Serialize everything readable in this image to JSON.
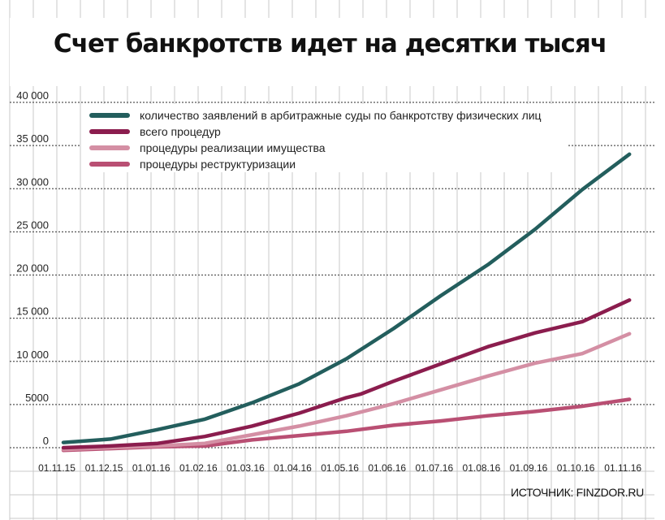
{
  "title": "Счет банкротств идет на десятки тысяч",
  "source": "ИСТОЧНИК: FINZDOR.RU",
  "chart_data": {
    "type": "line",
    "title": "Счет банкротств идет на десятки тысяч",
    "xlabel": "",
    "ylabel": "",
    "ylim": [
      0,
      40000
    ],
    "grid": true,
    "legend_placement": "top-left",
    "y_ticks": [
      {
        "value": 0,
        "label": "0"
      },
      {
        "value": 5000,
        "label": "5000"
      },
      {
        "value": 10000,
        "label": "10 000"
      },
      {
        "value": 15000,
        "label": "15 000"
      },
      {
        "value": 20000,
        "label": "20 000"
      },
      {
        "value": 25000,
        "label": "25 000"
      },
      {
        "value": 30000,
        "label": "30 000"
      },
      {
        "value": 35000,
        "label": "35 000"
      },
      {
        "value": 40000,
        "label": "40 000"
      }
    ],
    "categories": [
      "01.11.15",
      "01.12.15",
      "01.01.16",
      "01.02.16",
      "01.03.16",
      "01.04.16",
      "01.05.16",
      "01.06.16",
      "01.07.16",
      "01.08.16",
      "01.09.16",
      "01.10.16",
      "01.11.16"
    ],
    "series": [
      {
        "name": "количество заявлений в арбитражные суды по банкротству физических лиц",
        "color": "#235e5d",
        "points": [
          [
            0,
            600
          ],
          [
            1,
            1000
          ],
          [
            2,
            2100
          ],
          [
            3,
            3300
          ],
          [
            4,
            5200
          ],
          [
            5,
            7400
          ],
          [
            6,
            10300
          ],
          [
            7,
            13800
          ],
          [
            8,
            17600
          ],
          [
            9,
            21200
          ],
          [
            10,
            25300
          ],
          [
            11,
            29900
          ],
          [
            12,
            34000
          ]
        ]
      },
      {
        "name": "всего процедур",
        "color": "#8b1d4e",
        "points": [
          [
            0,
            0
          ],
          [
            1,
            200
          ],
          [
            2,
            500
          ],
          [
            3,
            1300
          ],
          [
            4,
            2500
          ],
          [
            5,
            4000
          ],
          [
            6,
            5800
          ],
          [
            6.3,
            6200
          ],
          [
            7,
            7700
          ],
          [
            8,
            9700
          ],
          [
            9,
            11700
          ],
          [
            10,
            13300
          ],
          [
            11,
            14600
          ],
          [
            12,
            17100
          ]
        ]
      },
      {
        "name": "процедуры  реализации имущества",
        "color": "#d48fa4",
        "points": [
          [
            0,
            -200
          ],
          [
            1,
            0
          ],
          [
            2,
            200
          ],
          [
            3,
            500
          ],
          [
            4,
            1500
          ],
          [
            5,
            2500
          ],
          [
            6,
            3700
          ],
          [
            7,
            5100
          ],
          [
            8,
            6700
          ],
          [
            9,
            8300
          ],
          [
            10,
            9800
          ],
          [
            11,
            10900
          ],
          [
            12,
            13200
          ]
        ]
      },
      {
        "name": "процедуры реструктуризации",
        "color": "#b94f73",
        "points": [
          [
            0,
            -300
          ],
          [
            1,
            -100
          ],
          [
            2,
            100
          ],
          [
            3,
            200
          ],
          [
            4,
            900
          ],
          [
            5,
            1400
          ],
          [
            6,
            1900
          ],
          [
            7,
            2600
          ],
          [
            8,
            3100
          ],
          [
            9,
            3700
          ],
          [
            10,
            4200
          ],
          [
            11,
            4800
          ],
          [
            12,
            5600
          ]
        ]
      }
    ]
  }
}
